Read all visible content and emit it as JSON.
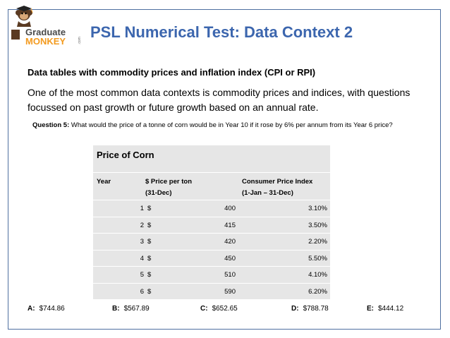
{
  "logo": {
    "line1": "Graduate",
    "line2": "MONKEY",
    "suffix": ".com"
  },
  "header": {
    "title": "PSL Numerical Test: Data Context 2"
  },
  "subtitle": "Data tables with commodity prices and inflation index (CPI or RPI)",
  "intro": "One of the most common data contexts is commodity prices and indices, with questions focussed on past growth or future growth based on an annual rate.",
  "question": {
    "label": "Question 5:",
    "text": "What would the price of a tonne of corn would be in Year 10 if it rose by 6% per annum from its Year 6 price?"
  },
  "table": {
    "title": "Price of Corn",
    "headers": {
      "year": "Year",
      "price_l1": "$ Price per ton",
      "price_l2": "(31-Dec)",
      "cpi_l1": "Consumer Price Index",
      "cpi_l2": "(1-Jan – 31-Dec)"
    },
    "currency": "$",
    "rows": [
      {
        "year": "1",
        "price": "400",
        "cpi": "3.10%"
      },
      {
        "year": "2",
        "price": "415",
        "cpi": "3.50%"
      },
      {
        "year": "3",
        "price": "420",
        "cpi": "2.20%"
      },
      {
        "year": "4",
        "price": "450",
        "cpi": "5.50%"
      },
      {
        "year": "5",
        "price": "510",
        "cpi": "4.10%"
      },
      {
        "year": "6",
        "price": "590",
        "cpi": "6.20%"
      }
    ]
  },
  "answers": [
    {
      "label": "A:",
      "value": "$744.86"
    },
    {
      "label": "B:",
      "value": "$567.89"
    },
    {
      "label": "C:",
      "value": "$652.65"
    },
    {
      "label": "D:",
      "value": "$788.78"
    },
    {
      "label": "E:",
      "value": "$444.12"
    }
  ],
  "colors": {
    "title": "#3c66ae",
    "frame": "#4f6fa0",
    "table_bg": "#e6e6e6",
    "logo_orange": "#f39a1e"
  }
}
